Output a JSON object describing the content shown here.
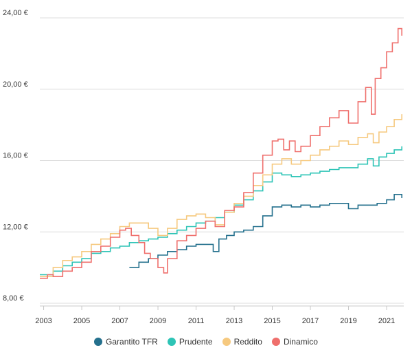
{
  "chart_data": {
    "type": "line",
    "title": "",
    "xlabel": "",
    "ylabel": "",
    "xlim": [
      2002.8,
      2021.9
    ],
    "ylim": [
      8,
      24
    ],
    "grid": true,
    "legend_position": "bottom",
    "x_ticks": [
      2003,
      2005,
      2007,
      2009,
      2011,
      2013,
      2015,
      2017,
      2019,
      2021
    ],
    "x_tick_labels": [
      "2003",
      "2005",
      "2007",
      "2009",
      "2011",
      "2013",
      "2015",
      "2017",
      "2019",
      "2021"
    ],
    "y_ticks": [
      8,
      12,
      16,
      20,
      24
    ],
    "y_tick_labels": [
      "8,00 €",
      "12,00 €",
      "16,00 €",
      "20,00 €",
      "24,00 €"
    ],
    "series": [
      {
        "name": "Garantito TFR",
        "color": "#24708d",
        "x": [
          2007.5,
          2008.0,
          2008.5,
          2009.0,
          2009.5,
          2010.0,
          2010.5,
          2011.0,
          2011.5,
          2011.9,
          2012.2,
          2012.6,
          2013.0,
          2013.5,
          2014.0,
          2014.5,
          2015.0,
          2015.5,
          2016.0,
          2016.5,
          2017.0,
          2017.5,
          2018.0,
          2018.5,
          2019.0,
          2019.5,
          2020.0,
          2020.5,
          2021.0,
          2021.4,
          2021.8
        ],
        "y": [
          10.0,
          10.3,
          10.5,
          10.7,
          10.9,
          11.0,
          11.2,
          11.3,
          11.3,
          10.9,
          11.6,
          11.8,
          12.0,
          12.1,
          12.3,
          12.9,
          13.4,
          13.5,
          13.4,
          13.5,
          13.4,
          13.5,
          13.6,
          13.6,
          13.3,
          13.5,
          13.5,
          13.6,
          13.8,
          14.1,
          13.9
        ]
      },
      {
        "name": "Prudente",
        "color": "#2ec4b6",
        "x": [
          2002.8,
          2003.5,
          2004.0,
          2004.5,
          2005.0,
          2005.5,
          2006.0,
          2006.5,
          2007.0,
          2007.5,
          2008.0,
          2008.5,
          2009.0,
          2009.5,
          2010.0,
          2010.5,
          2011.0,
          2011.5,
          2012.0,
          2012.5,
          2013.0,
          2013.5,
          2014.0,
          2014.5,
          2015.0,
          2015.5,
          2016.0,
          2016.5,
          2017.0,
          2017.5,
          2018.0,
          2018.5,
          2019.0,
          2019.5,
          2020.0,
          2020.3,
          2020.6,
          2021.0,
          2021.4,
          2021.8
        ],
        "y": [
          9.6,
          9.8,
          10.1,
          10.3,
          10.5,
          10.8,
          10.9,
          11.1,
          11.2,
          11.4,
          11.5,
          11.6,
          11.7,
          11.9,
          12.1,
          12.3,
          12.5,
          12.6,
          12.8,
          13.1,
          13.5,
          13.8,
          14.3,
          14.8,
          15.3,
          15.2,
          15.1,
          15.2,
          15.3,
          15.4,
          15.5,
          15.6,
          15.6,
          15.8,
          16.1,
          15.7,
          16.2,
          16.4,
          16.6,
          16.8
        ]
      },
      {
        "name": "Reddito",
        "color": "#f6c97f",
        "x": [
          2002.8,
          2003.5,
          2004.0,
          2004.5,
          2005.0,
          2005.5,
          2006.0,
          2006.5,
          2007.0,
          2007.5,
          2008.0,
          2008.5,
          2009.0,
          2009.5,
          2010.0,
          2010.5,
          2011.0,
          2011.5,
          2012.0,
          2012.5,
          2013.0,
          2013.5,
          2014.0,
          2014.5,
          2015.0,
          2015.5,
          2016.0,
          2016.5,
          2017.0,
          2017.5,
          2018.0,
          2018.5,
          2019.0,
          2019.5,
          2020.0,
          2020.3,
          2020.6,
          2021.0,
          2021.4,
          2021.8
        ],
        "y": [
          9.5,
          10.0,
          10.4,
          10.6,
          10.9,
          11.3,
          11.6,
          11.9,
          12.3,
          12.5,
          12.5,
          12.2,
          11.8,
          12.2,
          12.7,
          12.9,
          13.0,
          12.8,
          12.4,
          13.1,
          13.6,
          14.0,
          14.6,
          15.2,
          15.8,
          16.1,
          15.8,
          16.0,
          16.3,
          16.6,
          16.8,
          17.1,
          16.9,
          17.3,
          17.5,
          17.0,
          17.6,
          17.9,
          18.3,
          18.6
        ]
      },
      {
        "name": "Dinamico",
        "color": "#ef6f6c",
        "x": [
          2002.8,
          2003.2,
          2003.5,
          2004.0,
          2004.5,
          2005.0,
          2005.5,
          2006.0,
          2006.5,
          2007.0,
          2007.3,
          2007.6,
          2008.0,
          2008.3,
          2008.6,
          2009.0,
          2009.3,
          2009.5,
          2010.0,
          2010.5,
          2011.0,
          2011.5,
          2012.0,
          2012.5,
          2013.0,
          2013.5,
          2014.0,
          2014.5,
          2015.0,
          2015.3,
          2015.6,
          2015.9,
          2016.2,
          2016.5,
          2017.0,
          2017.5,
          2018.0,
          2018.5,
          2019.0,
          2019.5,
          2019.9,
          2020.2,
          2020.4,
          2020.7,
          2021.0,
          2021.3,
          2021.6,
          2021.8
        ],
        "y": [
          9.4,
          9.6,
          9.5,
          9.8,
          10.0,
          10.3,
          10.9,
          11.2,
          11.7,
          12.1,
          12.2,
          11.8,
          11.4,
          10.8,
          10.5,
          10.0,
          9.7,
          10.5,
          11.5,
          11.8,
          12.2,
          12.6,
          12.3,
          13.2,
          13.4,
          14.2,
          15.3,
          16.3,
          17.1,
          17.2,
          16.6,
          17.1,
          16.5,
          16.8,
          17.4,
          17.9,
          18.4,
          18.8,
          18.1,
          19.3,
          20.1,
          18.6,
          20.6,
          21.2,
          22.1,
          22.6,
          23.4,
          23.0
        ]
      }
    ]
  }
}
